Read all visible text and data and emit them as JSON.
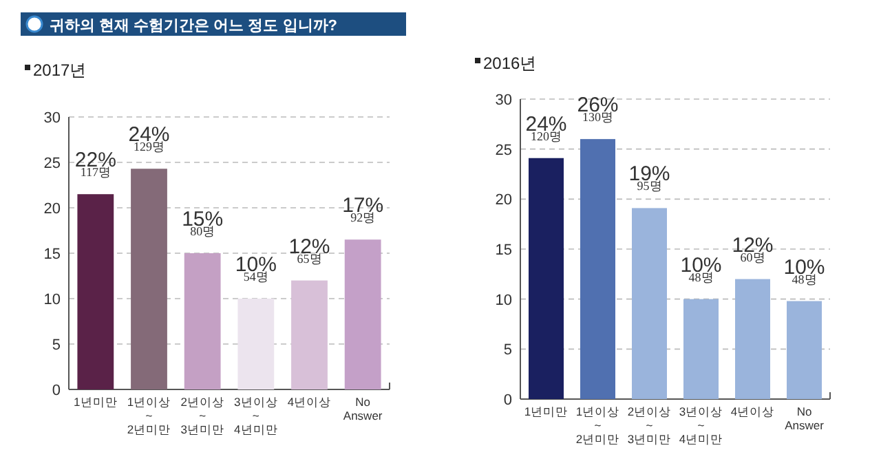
{
  "chart_data": [
    {
      "type": "bar",
      "title": "귀하의 현재 수험기간은 어느 정도 입니까?",
      "subtitle": "2017년",
      "categories": [
        "1년미만",
        "1년이상\n~\n2년미만",
        "2년이상\n~\n3년미만",
        "3년이상\n~\n4년미만",
        "4년이상",
        "No\nAnswer"
      ],
      "values": [
        21.5,
        24.3,
        15,
        10,
        12,
        16.5
      ],
      "colors": [
        "#5a2248",
        "#846a78",
        "#c4a0c4",
        "#ece4ee",
        "#d8c0d8",
        "#c4a0c8"
      ],
      "value_labels": [
        "22%\n117명",
        "24%\n129명",
        "15%\n80명",
        "10%\n54명",
        "12%\n65명",
        "17%\n92명"
      ],
      "ylim": [
        0,
        30
      ],
      "yticks": [
        0,
        5,
        10,
        15,
        20,
        25,
        30
      ],
      "grid": "y"
    },
    {
      "type": "bar",
      "title": "2016년",
      "categories": [
        "1년미만",
        "1년이상\n~\n2년미만",
        "2년이상\n~\n3년미만",
        "3년이상\n~\n4년미만",
        "4년이상",
        "No\nAnswer"
      ],
      "values": [
        24.1,
        26,
        19.1,
        10,
        12,
        9.8
      ],
      "colors": [
        "#1a2060",
        "#5070b0",
        "#9ab4dc",
        "#9ab4dc",
        "#9ab4dc",
        "#9ab4dc"
      ],
      "value_labels": [
        "24%\n120명",
        "26%\n130명",
        "19%\n95명",
        "10%\n48명",
        "12%\n60명",
        "10%\n48명"
      ],
      "ylim": [
        0,
        30
      ],
      "yticks": [
        0,
        5,
        10,
        15,
        20,
        25,
        30
      ],
      "grid": "y"
    }
  ]
}
